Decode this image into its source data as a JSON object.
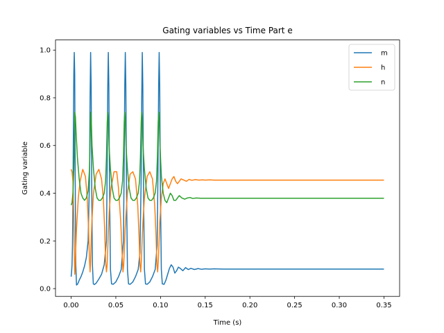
{
  "chart_data": {
    "type": "line",
    "title": "Gating variables vs Time Part e",
    "xlabel": "Time (s)",
    "ylabel": "Gating variable",
    "xlim": [
      -0.0175,
      0.3675
    ],
    "ylim": [
      -0.0325,
      1.0425
    ],
    "xticks": [
      0.0,
      0.05,
      0.1,
      0.15,
      0.2,
      0.25,
      0.3,
      0.35
    ],
    "xtick_labels": [
      "0.00",
      "0.05",
      "0.10",
      "0.15",
      "0.20",
      "0.25",
      "0.30",
      "0.35"
    ],
    "yticks": [
      0.0,
      0.2,
      0.4,
      0.6,
      0.8,
      1.0
    ],
    "ytick_labels": [
      "0.0",
      "0.2",
      "0.4",
      "0.6",
      "0.8",
      "1.0"
    ],
    "grid": false,
    "legend_position": "upper-right",
    "series": [
      {
        "name": "m",
        "color": "#1f77b4",
        "x": [
          0.0,
          0.0005,
          0.001,
          0.0015,
          0.002,
          0.0025,
          0.003,
          0.0035,
          0.004,
          0.0045,
          0.0052,
          0.006,
          0.007,
          0.008,
          0.009,
          0.011,
          0.013,
          0.015,
          0.017,
          0.019,
          0.0205,
          0.0212,
          0.0218,
          0.0224,
          0.023,
          0.0238,
          0.0248,
          0.026,
          0.028,
          0.031,
          0.034,
          0.037,
          0.0395,
          0.0403,
          0.041,
          0.0416,
          0.0422,
          0.043,
          0.044,
          0.0452,
          0.047,
          0.05,
          0.053,
          0.056,
          0.0585,
          0.0593,
          0.06,
          0.0606,
          0.0612,
          0.062,
          0.063,
          0.0642,
          0.066,
          0.069,
          0.072,
          0.075,
          0.077,
          0.0783,
          0.079,
          0.0796,
          0.0802,
          0.081,
          0.082,
          0.0832,
          0.085,
          0.088,
          0.091,
          0.094,
          0.0962,
          0.0972,
          0.0979,
          0.0985,
          0.0991,
          0.0999,
          0.1009,
          0.102,
          0.104,
          0.106,
          0.108,
          0.11,
          0.112,
          0.114,
          0.116,
          0.118,
          0.12,
          0.122,
          0.125,
          0.128,
          0.131,
          0.134,
          0.138,
          0.142,
          0.146,
          0.15,
          0.155,
          0.16,
          0.17,
          0.18,
          0.2,
          0.25,
          0.3,
          0.35
        ],
        "y": [
          0.05,
          0.07,
          0.1,
          0.18,
          0.35,
          0.65,
          0.9,
          0.99,
          0.9,
          0.5,
          0.1,
          0.015,
          0.018,
          0.025,
          0.035,
          0.05,
          0.07,
          0.095,
          0.13,
          0.2,
          0.45,
          0.8,
          0.99,
          0.85,
          0.45,
          0.1,
          0.02,
          0.017,
          0.023,
          0.04,
          0.06,
          0.1,
          0.2,
          0.5,
          0.85,
          0.99,
          0.85,
          0.4,
          0.08,
          0.02,
          0.018,
          0.028,
          0.05,
          0.08,
          0.2,
          0.5,
          0.85,
          0.99,
          0.85,
          0.4,
          0.08,
          0.02,
          0.018,
          0.028,
          0.05,
          0.08,
          0.15,
          0.45,
          0.8,
          0.99,
          0.85,
          0.4,
          0.08,
          0.02,
          0.018,
          0.028,
          0.05,
          0.08,
          0.18,
          0.5,
          0.85,
          0.99,
          0.85,
          0.4,
          0.08,
          0.02,
          0.018,
          0.035,
          0.06,
          0.085,
          0.1,
          0.09,
          0.065,
          0.075,
          0.09,
          0.085,
          0.075,
          0.088,
          0.08,
          0.085,
          0.08,
          0.084,
          0.081,
          0.083,
          0.082,
          0.083,
          0.082,
          0.082,
          0.082,
          0.082,
          0.082,
          0.082
        ]
      },
      {
        "name": "h",
        "color": "#ff7f0e",
        "x": [
          0.0,
          0.001,
          0.002,
          0.003,
          0.0035,
          0.004,
          0.0045,
          0.005,
          0.006,
          0.008,
          0.01,
          0.013,
          0.016,
          0.018,
          0.0195,
          0.0205,
          0.0212,
          0.0218,
          0.0224,
          0.0232,
          0.025,
          0.028,
          0.031,
          0.034,
          0.036,
          0.0375,
          0.0385,
          0.0395,
          0.0403,
          0.041,
          0.0418,
          0.0426,
          0.0445,
          0.048,
          0.051,
          0.053,
          0.0555,
          0.057,
          0.058,
          0.0588,
          0.0596,
          0.0604,
          0.0612,
          0.063,
          0.066,
          0.069,
          0.072,
          0.0745,
          0.076,
          0.077,
          0.0778,
          0.0786,
          0.0794,
          0.0802,
          0.082,
          0.085,
          0.088,
          0.091,
          0.0935,
          0.095,
          0.096,
          0.0968,
          0.0976,
          0.0984,
          0.0992,
          0.101,
          0.103,
          0.105,
          0.107,
          0.109,
          0.111,
          0.113,
          0.115,
          0.117,
          0.119,
          0.121,
          0.123,
          0.126,
          0.129,
          0.132,
          0.135,
          0.139,
          0.143,
          0.147,
          0.15,
          0.155,
          0.16,
          0.17,
          0.2,
          0.25,
          0.3,
          0.35
        ],
        "y": [
          0.5,
          0.49,
          0.45,
          0.3,
          0.15,
          0.06,
          0.08,
          0.15,
          0.25,
          0.38,
          0.45,
          0.5,
          0.47,
          0.38,
          0.25,
          0.12,
          0.07,
          0.12,
          0.2,
          0.28,
          0.4,
          0.48,
          0.5,
          0.46,
          0.38,
          0.25,
          0.12,
          0.07,
          0.1,
          0.17,
          0.25,
          0.32,
          0.42,
          0.49,
          0.49,
          0.42,
          0.28,
          0.15,
          0.07,
          0.1,
          0.17,
          0.25,
          0.3,
          0.4,
          0.48,
          0.49,
          0.46,
          0.35,
          0.22,
          0.1,
          0.07,
          0.12,
          0.2,
          0.27,
          0.38,
          0.47,
          0.49,
          0.46,
          0.35,
          0.22,
          0.1,
          0.07,
          0.12,
          0.2,
          0.28,
          0.38,
          0.44,
          0.46,
          0.44,
          0.42,
          0.44,
          0.46,
          0.47,
          0.45,
          0.44,
          0.45,
          0.46,
          0.455,
          0.45,
          0.458,
          0.454,
          0.457,
          0.455,
          0.456,
          0.455,
          0.456,
          0.455,
          0.455,
          0.455,
          0.455,
          0.455,
          0.455
        ]
      },
      {
        "name": "n",
        "color": "#2ca02c",
        "x": [
          0.0,
          0.001,
          0.002,
          0.003,
          0.0035,
          0.004,
          0.0048,
          0.0056,
          0.007,
          0.009,
          0.011,
          0.013,
          0.015,
          0.017,
          0.019,
          0.0205,
          0.0214,
          0.022,
          0.0226,
          0.0234,
          0.025,
          0.027,
          0.029,
          0.031,
          0.033,
          0.035,
          0.037,
          0.0385,
          0.0395,
          0.0404,
          0.041,
          0.0416,
          0.0424,
          0.044,
          0.046,
          0.048,
          0.05,
          0.052,
          0.054,
          0.056,
          0.0575,
          0.0585,
          0.0594,
          0.06,
          0.0606,
          0.0614,
          0.063,
          0.065,
          0.067,
          0.069,
          0.071,
          0.073,
          0.075,
          0.0765,
          0.0775,
          0.0784,
          0.079,
          0.0796,
          0.0804,
          0.082,
          0.084,
          0.086,
          0.088,
          0.09,
          0.092,
          0.094,
          0.0955,
          0.0965,
          0.0974,
          0.098,
          0.0986,
          0.0994,
          0.101,
          0.103,
          0.105,
          0.107,
          0.109,
          0.111,
          0.113,
          0.115,
          0.117,
          0.119,
          0.121,
          0.124,
          0.127,
          0.13,
          0.133,
          0.136,
          0.14,
          0.145,
          0.15,
          0.16,
          0.2,
          0.25,
          0.3,
          0.35
        ],
        "y": [
          0.35,
          0.36,
          0.4,
          0.5,
          0.6,
          0.74,
          0.72,
          0.65,
          0.55,
          0.46,
          0.4,
          0.38,
          0.37,
          0.38,
          0.41,
          0.5,
          0.65,
          0.74,
          0.7,
          0.6,
          0.5,
          0.42,
          0.38,
          0.37,
          0.37,
          0.38,
          0.4,
          0.45,
          0.55,
          0.7,
          0.74,
          0.7,
          0.6,
          0.5,
          0.42,
          0.38,
          0.37,
          0.37,
          0.38,
          0.4,
          0.45,
          0.55,
          0.7,
          0.74,
          0.7,
          0.6,
          0.5,
          0.42,
          0.38,
          0.37,
          0.37,
          0.38,
          0.4,
          0.45,
          0.55,
          0.7,
          0.74,
          0.7,
          0.6,
          0.5,
          0.42,
          0.38,
          0.37,
          0.37,
          0.38,
          0.4,
          0.45,
          0.55,
          0.7,
          0.74,
          0.7,
          0.6,
          0.47,
          0.4,
          0.37,
          0.36,
          0.38,
          0.4,
          0.39,
          0.37,
          0.37,
          0.38,
          0.39,
          0.38,
          0.375,
          0.38,
          0.382,
          0.378,
          0.38,
          0.379,
          0.379,
          0.379,
          0.379,
          0.379,
          0.379,
          0.379
        ]
      }
    ]
  }
}
